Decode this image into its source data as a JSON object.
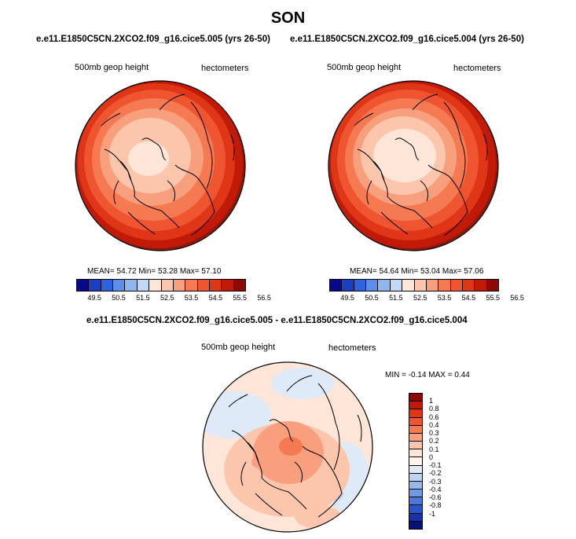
{
  "title": "SON",
  "panels": [
    {
      "subtitle": "e.e11.E1850C5CN.2XCO2.f09_g16.cice5.005 (yrs 26-50)",
      "left_label": "500mb geop height",
      "right_label": "hectometers",
      "stats": "MEAN=  54.72  Min=  53.28  Max=  57.10"
    },
    {
      "subtitle": "e.e11.E1850C5CN.2XCO2.f09_g16.cice5.004 (yrs 26-50)",
      "left_label": "500mb geop height",
      "right_label": "hectometers",
      "stats": "MEAN=  54.64  Min=  53.04  Max=  57.06"
    }
  ],
  "abs_colorbar": {
    "colors": [
      "#08088c",
      "#1a3fc2",
      "#2e63e0",
      "#5b8fea",
      "#8fb6ef",
      "#c2d9f5",
      "#fde6d8",
      "#fbc6ab",
      "#f8a07e",
      "#f57a52",
      "#ee5530",
      "#de3617",
      "#c21a08",
      "#8c0a02"
    ],
    "ticks": [
      "49.5",
      "50.5",
      "51.5",
      "52.5",
      "53.5",
      "54.5",
      "55.5",
      "56.5"
    ]
  },
  "diff_panel": {
    "subtitle": "e.e11.E1850C5CN.2XCO2.f09_g16.cice5.005 - e.e11.E1850C5CN.2XCO2.f09_g16.cice5.004",
    "left_label": "500mb geop height",
    "right_label": "hectometers",
    "stats": "MIN =  -0.14 MAX =   0.44"
  },
  "diff_colorbar": {
    "colors": [
      "#8c0a02",
      "#c21a08",
      "#de3617",
      "#ee5530",
      "#f57a52",
      "#f8a07e",
      "#fbc6ab",
      "#fde6d8",
      "#fff4ec",
      "#deeaf8",
      "#bcd3f2",
      "#96b8ea",
      "#6f99e2",
      "#4a79d8",
      "#2a55c8",
      "#1632a8",
      "#08107a"
    ],
    "ticks": [
      "1",
      "0.8",
      "0.6",
      "0.4",
      "0.3",
      "0.2",
      "0.1",
      "0",
      "-0.1",
      "-0.2",
      "-0.3",
      "-0.4",
      "-0.6",
      "-0.8",
      "-1"
    ]
  }
}
